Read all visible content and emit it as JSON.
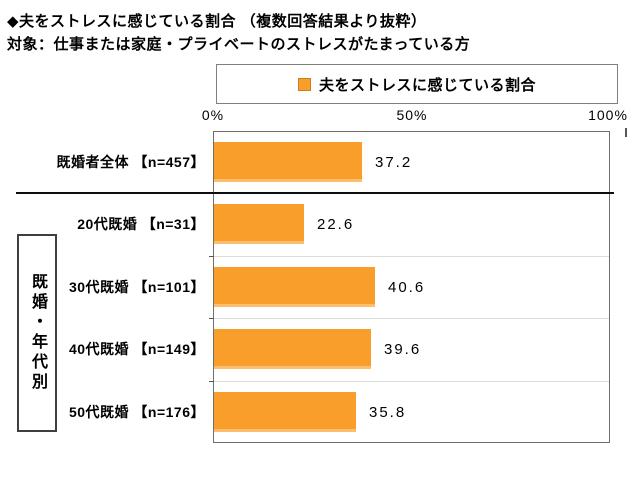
{
  "header": {
    "title_line1": "◆夫をストレスに感じている割合 （複数回答結果より抜粋）",
    "title_line2": "対象：仕事または家庭・プライベートのストレスがたまっている方"
  },
  "legend": {
    "label": "夫をストレスに感じている割合",
    "marker_color": "#F99D2B"
  },
  "axis": {
    "ticks": [
      "0%",
      "50%",
      "100%"
    ]
  },
  "group_label": {
    "text": "既婚・年代別"
  },
  "colors": {
    "bar": "#F99D2B",
    "bar_edge_light": "#FCBE6E",
    "gridline": "#DCDCDC",
    "plot_border": "#6E6E6E",
    "separator": "#0D0D0D"
  },
  "chart_data": {
    "type": "bar",
    "orientation": "horizontal",
    "title": "◆夫をストレスに感じている割合 （複数回答結果より抜粋）",
    "subtitle": "対象：仕事または家庭・プライベートのストレスがたまっている方",
    "legend_entries": [
      "夫をストレスに感じている割合"
    ],
    "legend_position": "top-center",
    "categories": [
      "既婚者全体 【n=457】",
      "20代既婚 【n=31】",
      "30代既婚 【n=101】",
      "40代既婚 【n=149】",
      "50代既婚 【n=176】"
    ],
    "values": [
      37.2,
      22.6,
      40.6,
      39.6,
      35.8
    ],
    "value_labels": [
      "37.2",
      "22.6",
      "40.6",
      "39.6",
      "35.8"
    ],
    "xlim": [
      0,
      100
    ],
    "x_tick_labels": [
      "0%",
      "50%",
      "100%"
    ],
    "grid": "light horizontal row separators; heavy black line below first row",
    "group": {
      "label": "既婚・年代別",
      "members": [
        "20代既婚 【n=31】",
        "30代既婚 【n=101】",
        "40代既婚 【n=149】",
        "50代既婚 【n=176】"
      ]
    },
    "bar_color": "#F99D2B"
  }
}
